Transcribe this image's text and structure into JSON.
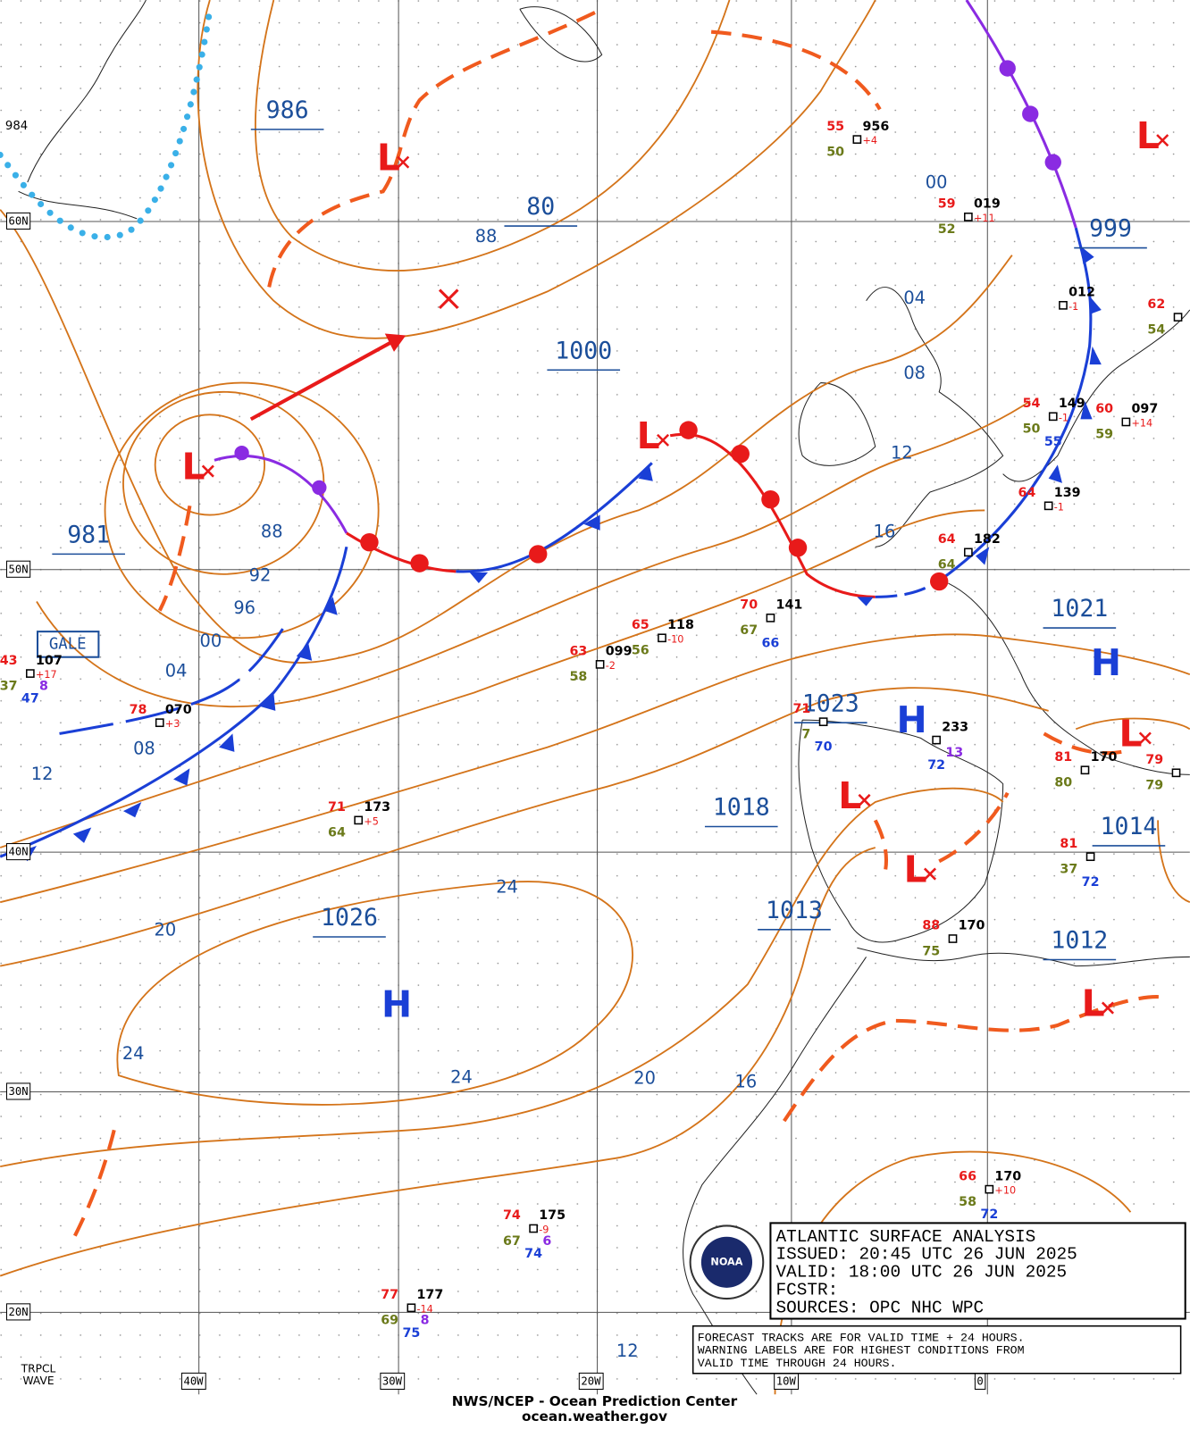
{
  "map": {
    "lat_labels": [
      "60N",
      "50N",
      "40N",
      "30N",
      "20N"
    ],
    "lon_labels": [
      "40W",
      "30W",
      "20W",
      "10W",
      "0"
    ],
    "center_labels": [
      "986",
      "80",
      "1000",
      "981",
      "999",
      "1021",
      "1023",
      "1018",
      "1014",
      "1026",
      "1013",
      "1012"
    ],
    "warning_label": "GALE",
    "isobar_labels": [
      "984",
      "88",
      "00",
      "04",
      "08",
      "12",
      "16",
      "88",
      "92",
      "96",
      "00",
      "04",
      "08",
      "12",
      "20",
      "24",
      "24",
      "24",
      "20",
      "16",
      "12"
    ],
    "high_symbol": "H",
    "low_symbol": "L",
    "wave_label": "TRPCL\nWAVE",
    "stations": [
      {
        "temp": "55",
        "pressure": "956",
        "tendency": "+4",
        "dew": "50"
      },
      {
        "temp": "59",
        "pressure": "019",
        "tendency": "+11",
        "dew": "52"
      },
      {
        "pressure": "012",
        "tendency": "-1"
      },
      {
        "temp": "62",
        "dew": "54"
      },
      {
        "temp": "54",
        "pressure": "149",
        "tendency": "-1",
        "dew": "50",
        "sea": "55"
      },
      {
        "temp": "60",
        "pressure": "097",
        "tendency": "+14",
        "dew": "59"
      },
      {
        "temp": "64",
        "pressure": "139",
        "tendency": "-1"
      },
      {
        "temp": "64",
        "pressure": "182",
        "dew": "64"
      },
      {
        "temp": "70",
        "pressure": "141",
        "dew": "67",
        "sea": "66"
      },
      {
        "temp": "65",
        "pressure": "118",
        "tendency": "-10",
        "dew": "56"
      },
      {
        "temp": "63",
        "pressure": "099",
        "tendency": "-2",
        "dew": "58"
      },
      {
        "temp": "43",
        "pressure": "107",
        "tendency": "+17",
        "dew": "37",
        "vis": "8",
        "sea": "47"
      },
      {
        "temp": "78",
        "pressure": "070",
        "tendency": "+3"
      },
      {
        "pressure": "233",
        "vis": "13",
        "sea": "72"
      },
      {
        "temp": "71",
        "dew": "7",
        "sea": "70"
      },
      {
        "temp": "81",
        "pressure": "170",
        "dew": "80"
      },
      {
        "temp": "79",
        "dew": "79"
      },
      {
        "temp": "71",
        "pressure": "173",
        "tendency": "+5",
        "dew": "64"
      },
      {
        "temp": "81",
        "dew": "37",
        "sea": "72"
      },
      {
        "temp": "88",
        "pressure": "170",
        "dew": "75"
      },
      {
        "temp": "66",
        "pressure": "170",
        "tendency": "+10",
        "dew": "58",
        "sea": "72"
      },
      {
        "temp": "74",
        "pressure": "175",
        "tendency": "-9",
        "dew": "67",
        "vis": "6",
        "sea": "74"
      },
      {
        "temp": "77",
        "pressure": "177",
        "tendency": "-14",
        "dew": "69",
        "vis": "8",
        "sea": "75"
      }
    ]
  },
  "info_box": {
    "lines": [
      "ATLANTIC SURFACE ANALYSIS",
      "ISSUED: 20:45 UTC 26 JUN 2025",
      "VALID:  18:00 UTC 26 JUN 2025",
      "FCSTR:",
      "SOURCES: OPC NHC WPC"
    ]
  },
  "notice": {
    "lines": [
      "FORECAST TRACKS ARE FOR VALID TIME + 24 HOURS.",
      "WARNING LABELS ARE FOR HIGHEST CONDITIONS FROM",
      "VALID TIME THROUGH 24 HOURS."
    ]
  },
  "footer": {
    "agency": "NWS/NCEP - Ocean Prediction Center",
    "url": "ocean.weather.gov"
  }
}
